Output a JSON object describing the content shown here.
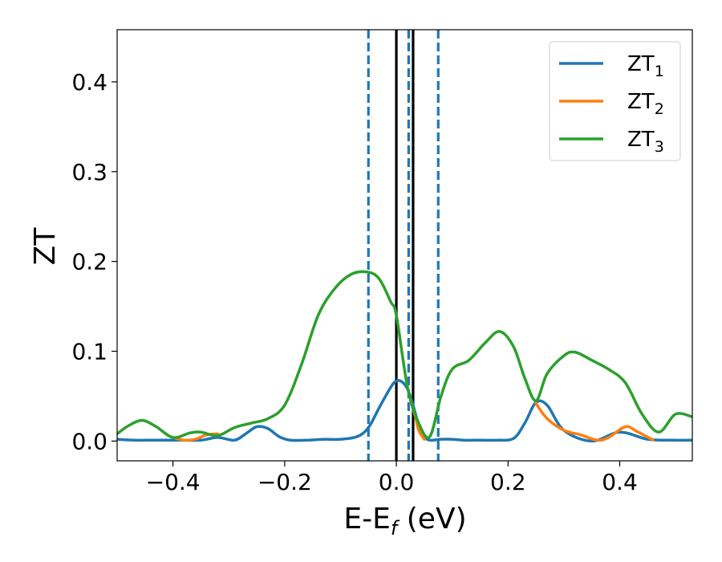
{
  "chart_data": {
    "type": "line",
    "xlabel": "E-E",
    "xlabel_sub": "f",
    "xlabel_unit": " (eV)",
    "ylabel": "ZT",
    "xlim": [
      -0.5,
      0.53
    ],
    "ylim": [
      -0.022,
      0.458
    ],
    "xticks": [
      -0.4,
      -0.2,
      0.0,
      0.2,
      0.4
    ],
    "xtick_labels": [
      "−0.4",
      "−0.2",
      "0.0",
      "0.2",
      "0.4"
    ],
    "yticks": [
      0.0,
      0.1,
      0.2,
      0.3,
      0.4
    ],
    "ytick_labels": [
      "0.0",
      "0.1",
      "0.2",
      "0.3",
      "0.4"
    ],
    "grid": false,
    "legend_position": "top-right",
    "vlines": [
      {
        "x": -0.05,
        "style": "dashed",
        "color": "#1f77b4"
      },
      {
        "x": 0.022,
        "style": "dashed",
        "color": "#1f77b4"
      },
      {
        "x": 0.075,
        "style": "dashed",
        "color": "#1f77b4"
      },
      {
        "x": 0.0,
        "style": "solid",
        "color": "#000000"
      },
      {
        "x": 0.03,
        "style": "solid",
        "color": "#000000"
      }
    ],
    "series": [
      {
        "name": "ZT",
        "name_sub": "1",
        "color": "#1f77b4",
        "x": [
          -0.5,
          -0.47,
          -0.44,
          -0.41,
          -0.38,
          -0.35,
          -0.32,
          -0.29,
          -0.27,
          -0.25,
          -0.23,
          -0.21,
          -0.19,
          -0.16,
          -0.13,
          -0.1,
          -0.07,
          -0.05,
          -0.03,
          -0.01,
          0.0,
          0.01,
          0.02,
          0.03,
          0.04,
          0.05,
          0.06,
          0.08,
          0.1,
          0.12,
          0.15,
          0.18,
          0.21,
          0.23,
          0.25,
          0.27,
          0.3,
          0.35,
          0.4,
          0.45,
          0.5,
          0.53
        ],
        "y": [
          0.002,
          0.001,
          0.001,
          0.001,
          0.001,
          0.001,
          0.004,
          0.001,
          0.008,
          0.016,
          0.014,
          0.005,
          0.001,
          0.001,
          0.002,
          0.002,
          0.005,
          0.015,
          0.038,
          0.06,
          0.067,
          0.066,
          0.058,
          0.04,
          0.018,
          0.005,
          0.001,
          0.002,
          0.002,
          0.001,
          0.001,
          0.001,
          0.003,
          0.02,
          0.043,
          0.04,
          0.012,
          0.0,
          0.01,
          0.002,
          0.001,
          0.001
        ]
      },
      {
        "name": "ZT",
        "name_sub": "2",
        "color": "#ff7f0e",
        "x": [
          -0.4,
          -0.38,
          -0.36,
          -0.34,
          -0.32,
          0.025,
          0.03,
          0.035,
          0.04,
          0.05,
          0.25,
          0.27,
          0.3,
          0.33,
          0.36,
          0.38,
          0.41,
          0.43,
          0.46
        ],
        "y": [
          0.004,
          0.001,
          0.002,
          0.007,
          0.008,
          0.045,
          0.035,
          0.025,
          0.012,
          0.002,
          0.042,
          0.025,
          0.012,
          0.007,
          0.001,
          0.004,
          0.016,
          0.011,
          0.001
        ]
      },
      {
        "name": "ZT",
        "name_sub": "3",
        "color": "#2ca02c",
        "x": [
          -0.5,
          -0.48,
          -0.455,
          -0.43,
          -0.4,
          -0.37,
          -0.35,
          -0.32,
          -0.29,
          -0.26,
          -0.23,
          -0.2,
          -0.17,
          -0.14,
          -0.11,
          -0.08,
          -0.05,
          -0.03,
          -0.01,
          0.0,
          0.02,
          0.04,
          0.06,
          0.08,
          0.1,
          0.13,
          0.16,
          0.185,
          0.21,
          0.23,
          0.25,
          0.27,
          0.3,
          0.32,
          0.35,
          0.38,
          0.41,
          0.44,
          0.47,
          0.5,
          0.53
        ],
        "y": [
          0.008,
          0.017,
          0.023,
          0.016,
          0.004,
          0.009,
          0.01,
          0.006,
          0.015,
          0.02,
          0.025,
          0.04,
          0.085,
          0.14,
          0.17,
          0.186,
          0.188,
          0.18,
          0.155,
          0.14,
          0.06,
          0.02,
          0.005,
          0.05,
          0.08,
          0.09,
          0.11,
          0.122,
          0.105,
          0.07,
          0.045,
          0.075,
          0.095,
          0.099,
          0.09,
          0.08,
          0.065,
          0.03,
          0.01,
          0.03,
          0.027
        ]
      }
    ]
  }
}
